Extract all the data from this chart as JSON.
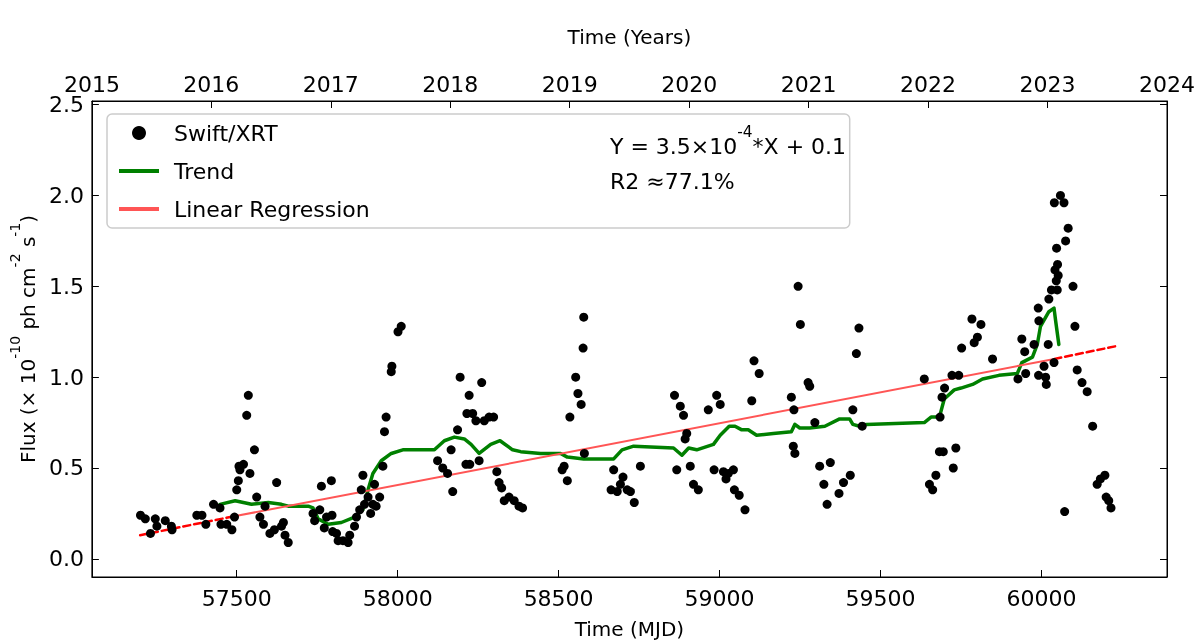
{
  "chart_data": {
    "type": "scatter",
    "xlabel": "Time (MJD)",
    "ylabel": "Flux (× 10$^{-10}$ ph cm$^{-2}$ s$^{-1}$)",
    "x2label": "Time (Years)",
    "xlim": [
      57050,
      60390
    ],
    "xticks": [
      57500,
      58000,
      58500,
      59000,
      59500,
      60000
    ],
    "x2lim": [
      2015,
      2024
    ],
    "x2ticks": [
      2015,
      2016,
      2017,
      2018,
      2019,
      2020,
      2021,
      2022,
      2023,
      2024
    ],
    "ylim": [
      -0.1,
      2.52
    ],
    "yticks": [
      {
        "value": 0,
        "label": "0.0"
      },
      {
        "value": 0.5,
        "label": "0.5"
      },
      {
        "value": 1,
        "label": "1.0"
      },
      {
        "value": 1.5,
        "label": "1.5"
      },
      {
        "value": 2,
        "label": "2.0"
      },
      {
        "value": 2.5,
        "label": "2.5"
      }
    ],
    "legend": "top left",
    "marker": "circle",
    "annotations": [
      "Y = 3.5×10$^{-4}$*X + 0.1",
      "R2 ≈77.1%"
    ],
    "series": [
      {
        "name": "Swift/XRT",
        "color": "#000000",
        "x": [
          57201,
          57216,
          57232,
          57247,
          57252,
          57278,
          57297,
          57299,
          57376,
          57392,
          57404,
          57428,
          57448,
          57451,
          57469,
          57485,
          57493,
          57500,
          57505,
          57507,
          57510,
          57521,
          57531,
          57536,
          57541,
          57555,
          57562,
          57572,
          57583,
          57588,
          57603,
          57617,
          57624,
          57639,
          57645,
          57650,
          57660,
          57737,
          57742,
          57758,
          57763,
          57772,
          57779,
          57794,
          57796,
          57798,
          57810,
          57815,
          57830,
          57846,
          57851,
          57866,
          57872,
          57882,
          57887,
          57892,
          57897,
          57908,
          57916,
          57923,
          57928,
          57933,
          57944,
          57954,
          57959,
          57964,
          57980,
          57982,
          58001,
          58011,
          58124,
          58140,
          58155,
          58166,
          58171,
          58186,
          58194,
          58212,
          58215,
          58222,
          58224,
          58233,
          58243,
          58253,
          58261,
          58269,
          58284,
          58298,
          58308,
          58315,
          58323,
          58331,
          58346,
          58362,
          58377,
          58388,
          58511,
          58517,
          58527,
          58535,
          58553,
          58560,
          58570,
          58576,
          58578,
          58580,
          58663,
          58671,
          58682,
          58692,
          58700,
          58713,
          58723,
          58735,
          58754,
          58860,
          58867,
          58878,
          58888,
          58893,
          58898,
          58909,
          58919,
          58934,
          58965,
          58983,
          58991,
          59002,
          59012,
          59020,
          59027,
          59043,
          59046,
          59061,
          59079,
          59100,
          59107,
          59123,
          59223,
          59229,
          59231,
          59234,
          59244,
          59251,
          59275,
          59280,
          59296,
          59311,
          59324,
          59334,
          59344,
          59371,
          59385,
          59406,
          59414,
          59425,
          59433,
          59443,
          59636,
          59652,
          59662,
          59672,
          59683,
          59685,
          59691,
          59695,
          59699,
          59722,
          59726,
          59734,
          59743,
          59752,
          59784,
          59791,
          59801,
          59812,
          59848,
          59927,
          59939,
          59948,
          59951,
          59977,
          59990,
          59991,
          59992,
          60008,
          60013,
          60015,
          60021,
          60023,
          60031,
          60039,
          60040,
          60042,
          60046,
          60047,
          60049,
          60050,
          60052,
          60059,
          60070,
          60072,
          60075,
          60083,
          60098,
          60104,
          60111,
          60126,
          60142,
          60159,
          60173,
          60183,
          60197,
          60201,
          60209,
          60216
        ],
        "values": [
          0.24,
          0.22,
          0.14,
          0.22,
          0.18,
          0.21,
          0.18,
          0.16,
          0.24,
          0.24,
          0.19,
          0.3,
          0.28,
          0.19,
          0.19,
          0.16,
          0.23,
          0.38,
          0.43,
          0.51,
          0.49,
          0.52,
          0.79,
          0.9,
          0.47,
          0.6,
          0.34,
          0.23,
          0.19,
          0.29,
          0.14,
          0.16,
          0.42,
          0.18,
          0.2,
          0.13,
          0.09,
          0.25,
          0.21,
          0.27,
          0.4,
          0.17,
          0.23,
          0.43,
          0.24,
          0.15,
          0.14,
          0.1,
          0.1,
          0.09,
          0.13,
          0.18,
          0.23,
          0.27,
          0.38,
          0.46,
          0.3,
          0.34,
          0.25,
          0.3,
          0.41,
          0.29,
          0.34,
          0.51,
          0.7,
          0.78,
          1.03,
          1.06,
          1.25,
          1.28,
          0.54,
          0.5,
          0.47,
          0.6,
          0.37,
          0.71,
          1.0,
          0.52,
          0.8,
          0.9,
          0.52,
          0.8,
          0.76,
          0.54,
          0.97,
          0.76,
          0.78,
          0.78,
          0.48,
          0.42,
          0.39,
          0.32,
          0.34,
          0.32,
          0.29,
          0.28,
          0.49,
          0.51,
          0.43,
          0.78,
          1.0,
          0.91,
          0.85,
          1.16,
          1.33,
          0.58,
          0.38,
          0.49,
          0.37,
          0.41,
          0.45,
          0.38,
          0.37,
          0.31,
          0.51,
          0.9,
          0.49,
          0.84,
          0.79,
          0.66,
          0.69,
          0.51,
          0.41,
          0.38,
          0.82,
          0.49,
          0.9,
          0.85,
          0.48,
          0.44,
          0.47,
          0.49,
          0.38,
          0.35,
          0.27,
          0.87,
          1.09,
          1.02,
          0.89,
          0.62,
          0.82,
          0.58,
          1.5,
          1.29,
          0.97,
          0.95,
          0.75,
          0.51,
          0.41,
          0.3,
          0.53,
          0.36,
          0.42,
          0.46,
          0.82,
          1.13,
          1.27,
          0.73,
          0.99,
          0.41,
          0.38,
          0.46,
          0.59,
          0.78,
          0.89,
          0.59,
          0.94,
          1.01,
          0.5,
          0.61,
          1.01,
          1.16,
          1.32,
          1.19,
          1.22,
          1.29,
          1.1,
          0.99,
          1.21,
          1.14,
          1.02,
          1.18,
          1.38,
          1.01,
          1.31,
          1.06,
          1.0,
          0.96,
          1.18,
          1.43,
          1.48,
          1.08,
          1.96,
          1.59,
          1.53,
          1.71,
          1.48,
          1.62,
          1.56,
          2.0,
          1.96,
          0.26,
          1.75,
          1.82,
          1.5,
          1.28,
          1.04,
          0.97,
          0.92,
          0.73,
          0.41,
          0.44,
          0.46,
          0.34,
          0.32,
          0.28
        ]
      },
      {
        "name": "Trend",
        "type": "line",
        "color": "#008000",
        "marker": "none",
        "x": [
          57448,
          57495,
          57546,
          57598,
          57639,
          57660,
          57722,
          57737,
          57753,
          57784,
          57825,
          57866,
          57892,
          57908,
          57923,
          57949,
          57980,
          58016,
          58114,
          58145,
          58176,
          58207,
          58228,
          58253,
          58289,
          58318,
          58357,
          58382,
          58444,
          58506,
          58527,
          58578,
          58671,
          58697,
          58733,
          58857,
          58883,
          58904,
          58929,
          58981,
          59002,
          59030,
          59048,
          59069,
          59089,
          59115,
          59167,
          59223,
          59234,
          59249,
          59280,
          59327,
          59373,
          59404,
          59414,
          59435,
          59456,
          59636,
          59657,
          59683,
          59698,
          59729,
          59750,
          59786,
          59817,
          59868,
          59925,
          59939,
          59972,
          59987,
          59997,
          60023,
          60039,
          60044,
          60054
        ],
        "values": [
          0.3,
          0.32,
          0.3,
          0.31,
          0.3,
          0.29,
          0.29,
          0.28,
          0.22,
          0.19,
          0.2,
          0.23,
          0.27,
          0.38,
          0.47,
          0.54,
          0.58,
          0.6,
          0.6,
          0.65,
          0.67,
          0.66,
          0.63,
          0.58,
          0.63,
          0.65,
          0.6,
          0.59,
          0.58,
          0.58,
          0.56,
          0.55,
          0.55,
          0.6,
          0.62,
          0.61,
          0.57,
          0.61,
          0.6,
          0.63,
          0.68,
          0.73,
          0.73,
          0.71,
          0.71,
          0.68,
          0.69,
          0.7,
          0.74,
          0.72,
          0.72,
          0.73,
          0.77,
          0.77,
          0.74,
          0.73,
          0.74,
          0.75,
          0.78,
          0.78,
          0.88,
          0.93,
          0.94,
          0.96,
          0.99,
          1.01,
          1.02,
          1.08,
          1.11,
          1.18,
          1.28,
          1.36,
          1.38,
          1.31,
          1.18
        ]
      },
      {
        "name": "Linear Regression",
        "type": "line",
        "color": "#ff5555",
        "marker": "none",
        "line_style": "solid",
        "x": [
          57480,
          60040
        ],
        "values": [
          0.23,
          1.1
        ]
      },
      {
        "type": "line",
        "color": "#ff0000",
        "marker": "none",
        "line_style": "dashed",
        "x": [
          57200,
          57480,
          57840,
          60040,
          60230
        ],
        "values": [
          0.13,
          0.23,
          null,
          1.1,
          1.17
        ]
      }
    ]
  }
}
